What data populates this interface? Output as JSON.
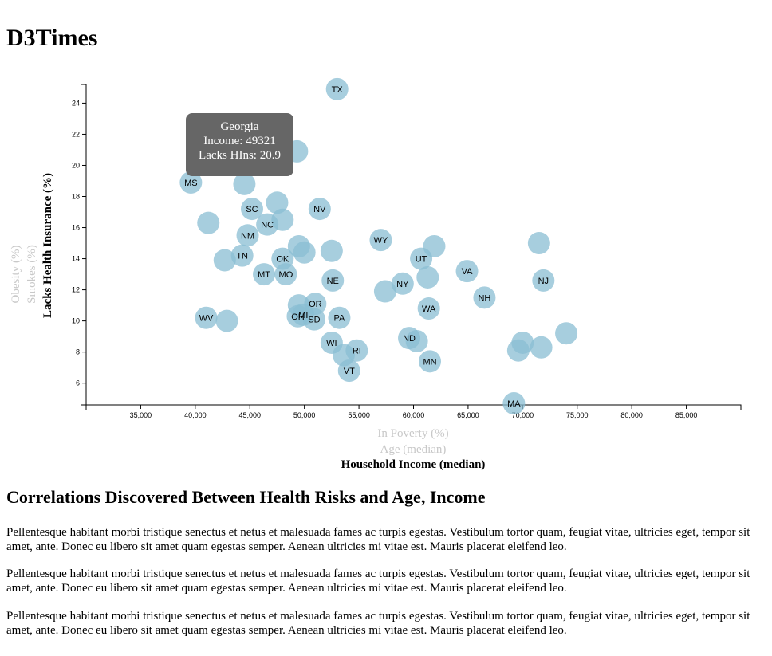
{
  "page": {
    "site_title": "D3Times",
    "article_heading": "Correlations Discovered Between Health Risks and Age, Income",
    "paragraphs": [
      "Pellentesque habitant morbi tristique senectus et netus et malesuada fames ac turpis egestas. Vestibulum tortor quam, feugiat vitae, ultricies eget, tempor sit amet, ante. Donec eu libero sit amet quam egestas semper. Aenean ultricies mi vitae est. Mauris placerat eleifend leo.",
      "Pellentesque habitant morbi tristique senectus et netus et malesuada fames ac turpis egestas. Vestibulum tortor quam, feugiat vitae, ultricies eget, tempor sit amet, ante. Donec eu libero sit amet quam egestas semper. Aenean ultricies mi vitae est. Mauris placerat eleifend leo.",
      "Pellentesque habitant morbi tristique senectus et netus et malesuada fames ac turpis egestas. Vestibulum tortor quam, feugiat vitae, ultricies eget, tempor sit amet, ante. Donec eu libero sit amet quam egestas semper. Aenean ultricies mi vitae est. Mauris placerat eleifend leo."
    ]
  },
  "tooltip": {
    "state": "Georgia",
    "line_income": "Income: 49321",
    "line_hlth": "Lacks HIns: 20.9"
  },
  "colors": {
    "marker": "#89bdd3",
    "tooltip_bg": "#666666",
    "inactive_label": "#c8c8c8"
  },
  "chart_data": {
    "type": "scatter",
    "x_label_active": "Household Income (median)",
    "x_labels_inactive": [
      "In Poverty (%)",
      "Age (median)"
    ],
    "y_label_active": "Lacks Health Insurance (%)",
    "y_labels_inactive": [
      "Smokes (%)",
      "Obesity (%)"
    ],
    "xlim": [
      30000,
      90000
    ],
    "ylim": [
      4.6,
      25.2
    ],
    "x_ticks": [
      35000,
      40000,
      45000,
      50000,
      55000,
      60000,
      65000,
      70000,
      75000,
      80000,
      85000
    ],
    "x_tick_labels": [
      "35,000",
      "40,000",
      "45,000",
      "50,000",
      "55,000",
      "60,000",
      "65,000",
      "70,000",
      "75,000",
      "80,000",
      "85,000"
    ],
    "y_ticks": [
      6,
      8,
      10,
      12,
      14,
      16,
      18,
      20,
      22,
      24
    ],
    "y_tick_labels": [
      "6",
      "8",
      "10",
      "12",
      "14",
      "16",
      "18",
      "20",
      "22",
      "24"
    ],
    "points": [
      {
        "abbr": "TX",
        "x": 53000,
        "y": 24.9
      },
      {
        "abbr": "",
        "x": 49321,
        "y": 20.9
      },
      {
        "abbr": "MS",
        "x": 39600,
        "y": 18.9
      },
      {
        "abbr": "",
        "x": 44500,
        "y": 18.8
      },
      {
        "abbr": "SC",
        "x": 45200,
        "y": 17.2
      },
      {
        "abbr": "",
        "x": 47500,
        "y": 17.6
      },
      {
        "abbr": "NV",
        "x": 51400,
        "y": 17.2
      },
      {
        "abbr": "",
        "x": 41200,
        "y": 16.3
      },
      {
        "abbr": "NC",
        "x": 46600,
        "y": 16.2
      },
      {
        "abbr": "",
        "x": 48000,
        "y": 16.5
      },
      {
        "abbr": "NM",
        "x": 44800,
        "y": 15.5
      },
      {
        "abbr": "WY",
        "x": 57000,
        "y": 15.2
      },
      {
        "abbr": "",
        "x": 61900,
        "y": 14.8
      },
      {
        "abbr": "",
        "x": 71500,
        "y": 15.0
      },
      {
        "abbr": "",
        "x": 49500,
        "y": 14.8
      },
      {
        "abbr": "",
        "x": 50000,
        "y": 14.4
      },
      {
        "abbr": "",
        "x": 52500,
        "y": 14.5
      },
      {
        "abbr": "TN",
        "x": 44300,
        "y": 14.2
      },
      {
        "abbr": "",
        "x": 42700,
        "y": 13.9
      },
      {
        "abbr": "OK",
        "x": 48000,
        "y": 14.0
      },
      {
        "abbr": "UT",
        "x": 60700,
        "y": 14.0
      },
      {
        "abbr": "VA",
        "x": 64900,
        "y": 13.2
      },
      {
        "abbr": "MT",
        "x": 46300,
        "y": 13.0
      },
      {
        "abbr": "MO",
        "x": 48300,
        "y": 13.0
      },
      {
        "abbr": "",
        "x": 61300,
        "y": 12.8
      },
      {
        "abbr": "NJ",
        "x": 71900,
        "y": 12.6
      },
      {
        "abbr": "NE",
        "x": 52600,
        "y": 12.6
      },
      {
        "abbr": "NY",
        "x": 59000,
        "y": 12.4
      },
      {
        "abbr": "",
        "x": 57400,
        "y": 11.9
      },
      {
        "abbr": "NH",
        "x": 66500,
        "y": 11.5
      },
      {
        "abbr": "OR",
        "x": 51000,
        "y": 11.1
      },
      {
        "abbr": "",
        "x": 49500,
        "y": 11.0
      },
      {
        "abbr": "WA",
        "x": 61400,
        "y": 10.8
      },
      {
        "abbr": "OH",
        "x": 49400,
        "y": 10.3
      },
      {
        "abbr": "MI",
        "x": 49900,
        "y": 10.4
      },
      {
        "abbr": "SD",
        "x": 50900,
        "y": 10.1
      },
      {
        "abbr": "PA",
        "x": 53200,
        "y": 10.2
      },
      {
        "abbr": "WV",
        "x": 41000,
        "y": 10.2
      },
      {
        "abbr": "",
        "x": 42900,
        "y": 10.0
      },
      {
        "abbr": "",
        "x": 74000,
        "y": 9.2
      },
      {
        "abbr": "ND",
        "x": 59600,
        "y": 8.9
      },
      {
        "abbr": "",
        "x": 60300,
        "y": 8.7
      },
      {
        "abbr": "WI",
        "x": 52500,
        "y": 8.6
      },
      {
        "abbr": "",
        "x": 70000,
        "y": 8.6
      },
      {
        "abbr": "RI",
        "x": 54800,
        "y": 8.1
      },
      {
        "abbr": "",
        "x": 53600,
        "y": 7.8
      },
      {
        "abbr": "",
        "x": 69600,
        "y": 8.1
      },
      {
        "abbr": "",
        "x": 71700,
        "y": 8.3
      },
      {
        "abbr": "MN",
        "x": 61500,
        "y": 7.4
      },
      {
        "abbr": "VT",
        "x": 54100,
        "y": 6.8
      },
      {
        "abbr": "MA",
        "x": 69200,
        "y": 4.7
      }
    ]
  }
}
